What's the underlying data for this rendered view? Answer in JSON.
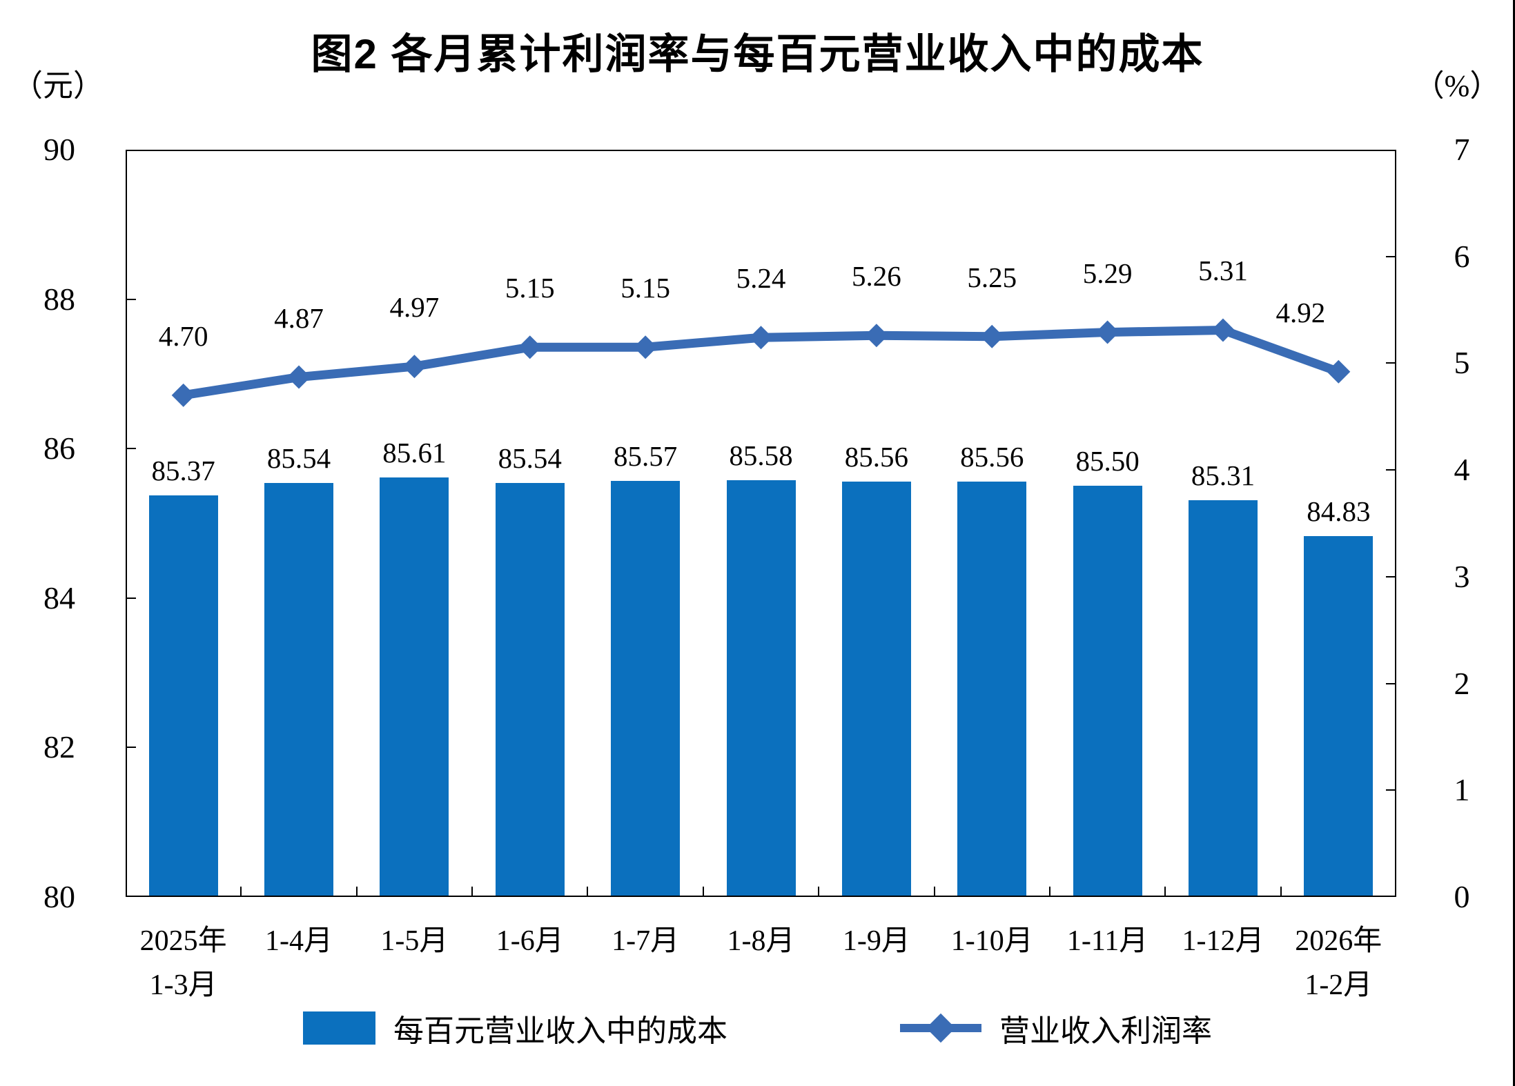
{
  "title": "图2 各月累计利润率与每百元营业收入中的成本",
  "legend": {
    "bar_label": "每百元营业收入中的成本",
    "line_label": "营业收入利润率"
  },
  "chart_data": {
    "type": "bar",
    "subtype": "combo bar+line, dual axis",
    "categories": [
      "2025年1-3月",
      "1-4月",
      "1-5月",
      "1-6月",
      "1-7月",
      "1-8月",
      "1-9月",
      "1-10月",
      "1-11月",
      "1-12月",
      "2026年1-2月"
    ],
    "category_display_lines": [
      [
        "2025年",
        "1-3月"
      ],
      [
        "1-4月"
      ],
      [
        "1-5月"
      ],
      [
        "1-6月"
      ],
      [
        "1-7月"
      ],
      [
        "1-8月"
      ],
      [
        "1-9月"
      ],
      [
        "1-10月"
      ],
      [
        "1-11月"
      ],
      [
        "1-12月"
      ],
      [
        "2026年",
        "1-2月"
      ]
    ],
    "series": [
      {
        "name": "每百元营业收入中的成本",
        "type": "bar",
        "axis": "left",
        "values": [
          85.37,
          85.54,
          85.61,
          85.54,
          85.57,
          85.58,
          85.56,
          85.56,
          85.5,
          85.31,
          84.83
        ],
        "color": "#0B70BE"
      },
      {
        "name": "营业收入利润率",
        "type": "line",
        "axis": "right",
        "values": [
          4.7,
          4.87,
          4.97,
          5.15,
          5.15,
          5.24,
          5.26,
          5.25,
          5.29,
          5.31,
          4.92
        ],
        "color": "#3A6CB5",
        "marker": "diamond"
      }
    ],
    "left_axis": {
      "unit": "（元）",
      "min": 80,
      "max": 90,
      "ticks": [
        90,
        88,
        86,
        84,
        82,
        80
      ]
    },
    "right_axis": {
      "unit": "（%）",
      "min": 0,
      "max": 7,
      "ticks": [
        7,
        6,
        5,
        4,
        3,
        2,
        1,
        0
      ]
    },
    "grid": "off",
    "legend_position": "bottom",
    "data_labels": "on"
  }
}
